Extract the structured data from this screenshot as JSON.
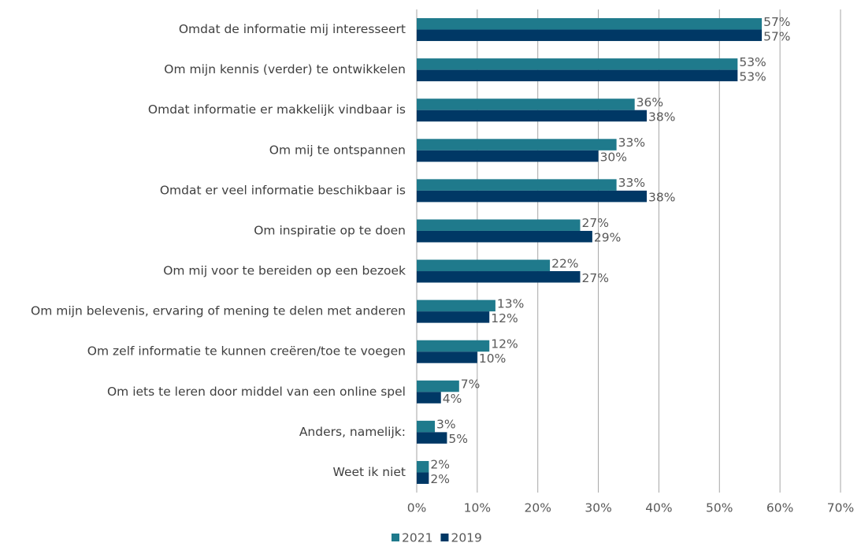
{
  "chart_data": {
    "type": "hbar",
    "categories": [
      "Omdat de informatie mij interesseert",
      "Om mijn kennis (verder) te ontwikkelen",
      "Omdat informatie er makkelijk vindbaar is",
      "Om mij te ontspannen",
      "Omdat er veel informatie beschikbaar is",
      "Om inspiratie op te doen",
      "Om mij voor te bereiden op een bezoek",
      "Om mijn belevenis, ervaring of mening te delen met anderen",
      "Om zelf informatie te kunnen creëren/toe te voegen",
      "Om iets te leren door middel van een online spel",
      "Anders, namelijk:",
      "Weet ik niet"
    ],
    "series": [
      {
        "name": "2021",
        "color": "#1f7a8c",
        "values": [
          57,
          53,
          36,
          33,
          33,
          27,
          22,
          13,
          12,
          7,
          3,
          2
        ],
        "value_labels": [
          "57%",
          "53%",
          "36%",
          "33%",
          "33%",
          "27%",
          "22%",
          "13%",
          "12%",
          "7%",
          "3%",
          "2%"
        ]
      },
      {
        "name": "2019",
        "color": "#003865",
        "values": [
          57,
          53,
          38,
          30,
          38,
          29,
          27,
          12,
          10,
          4,
          5,
          2
        ],
        "value_labels": [
          "57%",
          "53%",
          "38%",
          "30%",
          "38%",
          "29%",
          "27%",
          "12%",
          "10%",
          "4%",
          "5%",
          "2%"
        ]
      }
    ],
    "xlim": [
      0,
      70
    ],
    "xticks": [
      {
        "value": 0,
        "label": "0%"
      },
      {
        "value": 10,
        "label": "10%"
      },
      {
        "value": 20,
        "label": "20%"
      },
      {
        "value": 30,
        "label": "30%"
      },
      {
        "value": 40,
        "label": "40%"
      },
      {
        "value": 50,
        "label": "50%"
      },
      {
        "value": 60,
        "label": "60%"
      },
      {
        "value": 70,
        "label": "70%"
      }
    ],
    "grid": true,
    "legend": "bottom"
  }
}
